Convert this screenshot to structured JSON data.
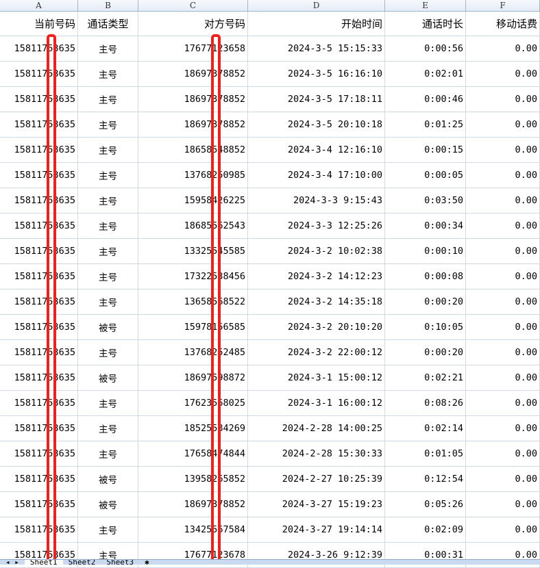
{
  "columns": [
    "A",
    "B",
    "C",
    "D",
    "E",
    "F"
  ],
  "headers": [
    "当前号码",
    "通话类型",
    "对方号码",
    "开始时间",
    "通话时长",
    "移动话费"
  ],
  "rows": [
    [
      "15811753635",
      "主号",
      "17677123658",
      "2024-3-5 15:15:33",
      "0:00:56",
      "0.00"
    ],
    [
      "15811753635",
      "主号",
      "18697378852",
      "2024-3-5 16:16:10",
      "0:02:01",
      "0.00"
    ],
    [
      "15811753635",
      "主号",
      "18697378852",
      "2024-3-5 17:18:11",
      "0:00:46",
      "0.00"
    ],
    [
      "15811753635",
      "主号",
      "18697378852",
      "2024-3-5 20:10:18",
      "0:01:25",
      "0.00"
    ],
    [
      "15811753635",
      "主号",
      "18658548852",
      "2024-3-4 12:16:10",
      "0:00:15",
      "0.00"
    ],
    [
      "15811753635",
      "主号",
      "13768250985",
      "2024-3-4 17:10:00",
      "0:00:05",
      "0.00"
    ],
    [
      "15811753635",
      "主号",
      "15958426225",
      "2024-3-3 9:15:43",
      "0:03:50",
      "0.00"
    ],
    [
      "15811753635",
      "主号",
      "18685562543",
      "2024-3-3 12:25:26",
      "0:00:34",
      "0.00"
    ],
    [
      "15811753635",
      "主号",
      "13325545585",
      "2024-3-2 10:02:38",
      "0:00:10",
      "0.00"
    ],
    [
      "15811753635",
      "主号",
      "17322538456",
      "2024-3-2 14:12:23",
      "0:00:08",
      "0.00"
    ],
    [
      "15811753635",
      "主号",
      "13658568522",
      "2024-3-2 14:35:18",
      "0:00:20",
      "0.00"
    ],
    [
      "15811753635",
      "被号",
      "15978156585",
      "2024-3-2 20:10:20",
      "0:10:05",
      "0.00"
    ],
    [
      "15811753635",
      "主号",
      "13768252485",
      "2024-3-2 22:00:12",
      "0:00:20",
      "0.00"
    ],
    [
      "15811753635",
      "被号",
      "18697598872",
      "2024-3-1 15:00:12",
      "0:02:21",
      "0.00"
    ],
    [
      "15811753635",
      "主号",
      "17623568025",
      "2024-3-1 16:00:12",
      "0:08:26",
      "0.00"
    ],
    [
      "15811753635",
      "主号",
      "18525584269",
      "2024-2-28 14:00:25",
      "0:02:14",
      "0.00"
    ],
    [
      "15811753635",
      "主号",
      "17658474844",
      "2024-2-28 15:30:33",
      "0:01:05",
      "0.00"
    ],
    [
      "15811753635",
      "被号",
      "13958265852",
      "2024-2-27 10:25:39",
      "0:12:54",
      "0.00"
    ],
    [
      "15811753635",
      "被号",
      "18697378852",
      "2024-3-27 15:19:23",
      "0:05:26",
      "0.00"
    ],
    [
      "15811753635",
      "主号",
      "13425567584",
      "2024-3-27 19:14:14",
      "0:02:09",
      "0.00"
    ],
    [
      "15811753635",
      "主号",
      "17677123678",
      "2024-3-26 9:12:39",
      "0:00:31",
      "0.00"
    ]
  ],
  "sheet_tabs": [
    "Sheet1",
    "Sheet2",
    "Sheet3"
  ],
  "redaction_color": "#f0201a"
}
